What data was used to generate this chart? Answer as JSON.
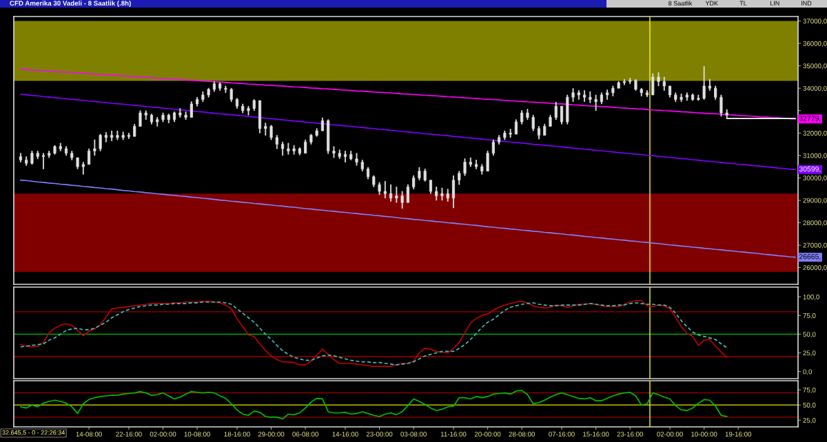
{
  "chart_data": [
    {
      "type": "candlestick",
      "title": "CFD Amerika 30 Vadeli - 8 Saatlik (.8h)",
      "color": "#e0e0e0",
      "annotations": [
        "8 Saatlik",
        "YDK",
        "TL",
        "LIN",
        "IND"
      ],
      "categories": [
        null,
        null,
        null,
        null,
        null,
        null,
        null,
        null,
        null,
        null,
        null,
        null,
        null,
        null,
        null,
        null,
        null,
        null,
        null,
        null,
        null,
        null,
        null,
        null,
        null,
        null,
        null,
        null,
        null,
        null,
        null,
        null,
        null,
        null,
        null,
        null,
        null,
        null,
        null,
        null,
        null,
        null,
        null,
        null,
        null,
        null,
        null,
        null,
        null,
        null,
        null,
        null,
        null,
        null,
        null,
        null,
        null,
        null,
        null,
        null,
        null,
        null,
        null,
        null,
        null,
        null,
        null,
        null,
        null,
        null,
        null,
        null,
        null,
        null,
        null,
        null,
        null,
        null,
        null,
        null,
        null,
        null,
        null,
        null,
        null,
        null,
        null,
        null,
        null,
        null,
        null,
        null,
        null,
        null,
        null,
        null,
        null,
        null,
        null,
        null,
        null,
        null,
        null,
        null,
        null,
        null,
        null,
        null,
        null,
        null,
        null,
        null,
        null,
        null,
        null,
        null,
        null,
        null,
        null,
        null,
        null,
        null,
        null,
        null,
        null,
        null,
        null,
        null,
        null,
        null,
        null,
        null,
        null,
        null,
        null,
        null,
        null
      ],
      "ohlc": [
        [
          30950,
          31100,
          30700,
          30800
        ],
        [
          30800,
          30950,
          30550,
          30650
        ],
        [
          30650,
          31200,
          30600,
          31100
        ],
        [
          31100,
          31200,
          30850,
          30950
        ],
        [
          30950,
          31100,
          30400,
          31000
        ],
        [
          31000,
          31200,
          30900,
          31100
        ],
        [
          31100,
          31450,
          31050,
          31400
        ],
        [
          31400,
          31550,
          31200,
          31300
        ],
        [
          31300,
          31400,
          31000,
          31100
        ],
        [
          31100,
          31200,
          30800,
          30900
        ],
        [
          30900,
          30900,
          30400,
          30500
        ],
        [
          30500,
          30700,
          30160,
          30600
        ],
        [
          30600,
          31300,
          30600,
          31200
        ],
        [
          31200,
          31700,
          31000,
          31300
        ],
        [
          31300,
          31950,
          31200,
          31900
        ],
        [
          31900,
          32030,
          31600,
          31800
        ],
        [
          31800,
          32100,
          31650,
          31900
        ],
        [
          31900,
          32100,
          31700,
          31800
        ],
        [
          31800,
          32050,
          31700,
          31900
        ],
        [
          31900,
          32000,
          31750,
          31850
        ],
        [
          31850,
          32400,
          31850,
          32300
        ],
        [
          32300,
          33000,
          32300,
          32900
        ],
        [
          32900,
          33000,
          32600,
          32800
        ],
        [
          32800,
          32850,
          32400,
          32500
        ],
        [
          32500,
          32700,
          32300,
          32600
        ],
        [
          32600,
          32900,
          32500,
          32800
        ],
        [
          32800,
          32850,
          32450,
          32600
        ],
        [
          32600,
          32950,
          32500,
          32900
        ],
        [
          32900,
          33100,
          32700,
          32800
        ],
        [
          32800,
          32950,
          32600,
          32700
        ],
        [
          32700,
          33400,
          32700,
          33300
        ],
        [
          33300,
          33600,
          33200,
          33500
        ],
        [
          33500,
          33850,
          33400,
          33700
        ],
        [
          33700,
          34000,
          33600,
          33950
        ],
        [
          33950,
          34300,
          33850,
          34200
        ],
        [
          34200,
          34250,
          33900,
          34000
        ],
        [
          34000,
          34100,
          33800,
          33950
        ],
        [
          33950,
          34000,
          33400,
          33500
        ],
        [
          33500,
          33550,
          33100,
          33200
        ],
        [
          33200,
          33300,
          32900,
          33000
        ],
        [
          33000,
          33200,
          32800,
          33100
        ],
        [
          33100,
          33500,
          33000,
          33450
        ],
        [
          33450,
          33450,
          32000,
          32200
        ],
        [
          32200,
          32450,
          31900,
          32300
        ],
        [
          32300,
          32350,
          31700,
          31800
        ],
        [
          31800,
          31900,
          31300,
          31500
        ],
        [
          31500,
          31600,
          31000,
          31300
        ],
        [
          31300,
          31550,
          31050,
          31200
        ],
        [
          31200,
          31450,
          31050,
          31300
        ],
        [
          31300,
          31350,
          31020,
          31100
        ],
        [
          31100,
          31700,
          31100,
          31600
        ],
        [
          31600,
          31950,
          31500,
          31900
        ],
        [
          31900,
          32200,
          31850,
          32100
        ],
        [
          32100,
          32680,
          32100,
          32550
        ],
        [
          32550,
          32600,
          31080,
          31200
        ],
        [
          31200,
          31400,
          30900,
          31100
        ],
        [
          31100,
          31250,
          30860,
          30950
        ],
        [
          30950,
          31200,
          30700,
          31050
        ],
        [
          31050,
          31200,
          30800,
          30850
        ],
        [
          30850,
          31100,
          30560,
          30700
        ],
        [
          30700,
          30800,
          30300,
          30400
        ],
        [
          30400,
          30470,
          29950,
          30050
        ],
        [
          30050,
          30100,
          29600,
          29700
        ],
        [
          29700,
          29800,
          29250,
          29400
        ],
        [
          29400,
          29850,
          29100,
          29300
        ],
        [
          29300,
          29700,
          28950,
          29100
        ],
        [
          29100,
          29600,
          28900,
          29200
        ],
        [
          29200,
          29400,
          28640,
          28900
        ],
        [
          28900,
          29700,
          28900,
          29600
        ],
        [
          29600,
          30100,
          29500,
          30000
        ],
        [
          30000,
          30470,
          29900,
          30300
        ],
        [
          30300,
          30400,
          29850,
          29900
        ],
        [
          29900,
          29900,
          29300,
          29400
        ],
        [
          29400,
          29600,
          29000,
          29200
        ],
        [
          29200,
          29550,
          29000,
          29300
        ],
        [
          29300,
          29500,
          28950,
          29100
        ],
        [
          29100,
          30100,
          28660,
          29900
        ],
        [
          29900,
          30300,
          29700,
          30200
        ],
        [
          30200,
          30860,
          30100,
          30700
        ],
        [
          30700,
          30900,
          30500,
          30600
        ],
        [
          30600,
          30800,
          30400,
          30500
        ],
        [
          30500,
          30600,
          30160,
          30300
        ],
        [
          30300,
          31200,
          30300,
          31100
        ],
        [
          31100,
          31700,
          31000,
          31600
        ],
        [
          31600,
          31900,
          31500,
          31800
        ],
        [
          31800,
          32100,
          31700,
          32000
        ],
        [
          32000,
          32180,
          31800,
          31950
        ],
        [
          31950,
          32600,
          31950,
          32500
        ],
        [
          32500,
          33010,
          32400,
          32900
        ],
        [
          32900,
          33070,
          32600,
          32700
        ],
        [
          32700,
          32800,
          32100,
          32200
        ],
        [
          32200,
          32300,
          31730,
          31900
        ],
        [
          31900,
          32400,
          31900,
          32300
        ],
        [
          32300,
          32800,
          32300,
          32700
        ],
        [
          32700,
          33380,
          32600,
          33200
        ],
        [
          33200,
          33200,
          32400,
          32500
        ],
        [
          32500,
          33700,
          32400,
          33600
        ],
        [
          33600,
          33990,
          33400,
          33800
        ],
        [
          33800,
          33900,
          33500,
          33700
        ],
        [
          33700,
          33900,
          33400,
          33600
        ],
        [
          33600,
          33850,
          33350,
          33500
        ],
        [
          33500,
          33700,
          33000,
          33400
        ],
        [
          33400,
          33800,
          33300,
          33700
        ],
        [
          33700,
          33930,
          33500,
          33800
        ],
        [
          33800,
          34100,
          33650,
          34000
        ],
        [
          34000,
          34300,
          34000,
          34250
        ],
        [
          34250,
          34400,
          34150,
          34300
        ],
        [
          34300,
          34450,
          34200,
          34350
        ],
        [
          34350,
          34400,
          33900,
          33950
        ],
        [
          33950,
          34000,
          33650,
          33800
        ],
        [
          33800,
          33900,
          33620,
          33700
        ],
        [
          33700,
          34650,
          33700,
          34500
        ],
        [
          34500,
          34700,
          34100,
          34300
        ],
        [
          34300,
          34500,
          33900,
          34100
        ],
        [
          34100,
          34100,
          33600,
          33700
        ],
        [
          33700,
          33800,
          33400,
          33500
        ],
        [
          33500,
          33750,
          33400,
          33600
        ],
        [
          33600,
          33800,
          33450,
          33700
        ],
        [
          33700,
          33750,
          33450,
          33500
        ],
        [
          33500,
          33700,
          33450,
          33550
        ],
        [
          33550,
          34975,
          33500,
          34100
        ],
        [
          34100,
          34400,
          33900,
          34000
        ],
        [
          34000,
          34100,
          33500,
          33600
        ],
        [
          33600,
          33700,
          32750,
          32900
        ],
        [
          32900,
          33050,
          32650,
          32800
        ],
        null,
        null,
        null,
        null,
        null,
        null,
        null,
        null,
        null,
        null,
        null,
        null
      ],
      "series": [
        {
          "type": "line",
          "name": "32779,",
          "color": "#ff00ff",
          "values": [
            34850,
            34830,
            34810,
            34800,
            34780,
            34760,
            34750,
            34730,
            34720,
            34700,
            34680,
            34670,
            34650,
            34630,
            34620,
            34600,
            34590,
            34570,
            34550,
            34540,
            34520,
            34500,
            34490,
            34470,
            34450,
            34440,
            34420,
            34410,
            34390,
            34370,
            34360,
            34340,
            34320,
            34310,
            34290,
            34280,
            34260,
            34240,
            34230,
            34210,
            34190,
            34180,
            34160,
            34140,
            34130,
            34110,
            34100,
            34080,
            34060,
            34050,
            34030,
            34010,
            34000,
            33980,
            33970,
            33950,
            33930,
            33920,
            33900,
            33880,
            33870,
            33850,
            33830,
            33820,
            33800,
            33790,
            33770,
            33750,
            33740,
            33720,
            33700,
            33690,
            33670,
            33660,
            33640,
            33620,
            33610,
            33590,
            33570,
            33560,
            33540,
            33520,
            33510,
            33490,
            33480,
            33460,
            33440,
            33430,
            33410,
            33390,
            33380,
            33360,
            33350,
            33330,
            33310,
            33300,
            33280,
            33260,
            33250,
            33230,
            33210,
            33200,
            33180,
            33170,
            33150,
            33130,
            33120,
            33100,
            33080,
            33070,
            33050,
            33030,
            33020,
            33000,
            32990,
            32970,
            32950,
            32940,
            32920,
            32900,
            32890,
            32870,
            32860,
            32840,
            32820,
            32810,
            32790,
            32770,
            32760,
            32740,
            32720,
            32710,
            32690,
            32680,
            32660,
            32640,
            32630
          ]
        },
        {
          "type": "line",
          "name": "30599,",
          "color": "#8000ff",
          "values": [
            33730,
            33710,
            33680,
            33660,
            33630,
            33610,
            33580,
            33560,
            33530,
            33510,
            33480,
            33460,
            33430,
            33410,
            33380,
            33360,
            33330,
            33310,
            33290,
            33260,
            33240,
            33210,
            33190,
            33160,
            33140,
            33110,
            33090,
            33060,
            33040,
            33010,
            32990,
            32960,
            32940,
            32910,
            32890,
            32860,
            32840,
            32820,
            32790,
            32770,
            32740,
            32720,
            32690,
            32670,
            32640,
            32620,
            32590,
            32570,
            32540,
            32520,
            32490,
            32470,
            32440,
            32420,
            32390,
            32370,
            32350,
            32320,
            32300,
            32270,
            32250,
            32220,
            32200,
            32170,
            32150,
            32120,
            32100,
            32070,
            32050,
            32020,
            32000,
            31970,
            31950,
            31930,
            31900,
            31880,
            31850,
            31830,
            31800,
            31780,
            31750,
            31730,
            31700,
            31680,
            31650,
            31630,
            31600,
            31580,
            31550,
            31530,
            31500,
            31480,
            31460,
            31430,
            31410,
            31380,
            31360,
            31330,
            31310,
            31280,
            31260,
            31230,
            31210,
            31180,
            31160,
            31130,
            31110,
            31080,
            31060,
            31040,
            31010,
            30990,
            30960,
            30940,
            30910,
            30890,
            30860,
            30840,
            30810,
            30790,
            30760,
            30740,
            30710,
            30690,
            30660,
            30640,
            30610,
            30590,
            30570,
            30540,
            30520,
            30490,
            30470,
            30440,
            30420,
            30390,
            30370
          ]
        },
        {
          "type": "line",
          "name": "26665,",
          "color": "#8080ff",
          "values": [
            29900,
            29880,
            29850,
            29820,
            29800,
            29770,
            29750,
            29720,
            29700,
            29670,
            29650,
            29620,
            29600,
            29570,
            29550,
            29520,
            29500,
            29470,
            29440,
            29420,
            29390,
            29370,
            29340,
            29320,
            29290,
            29270,
            29240,
            29220,
            29190,
            29170,
            29140,
            29120,
            29090,
            29070,
            29040,
            29010,
            28990,
            28960,
            28940,
            28910,
            28890,
            28860,
            28840,
            28810,
            28790,
            28760,
            28740,
            28710,
            28690,
            28660,
            28630,
            28610,
            28580,
            28560,
            28530,
            28510,
            28480,
            28460,
            28430,
            28410,
            28380,
            28360,
            28330,
            28310,
            28280,
            28260,
            28230,
            28200,
            28180,
            28150,
            28130,
            28100,
            28080,
            28050,
            28030,
            28000,
            27980,
            27950,
            27930,
            27900,
            27880,
            27850,
            27820,
            27800,
            27770,
            27750,
            27720,
            27700,
            27670,
            27650,
            27620,
            27600,
            27570,
            27550,
            27520,
            27500,
            27470,
            27450,
            27420,
            27390,
            27370,
            27340,
            27320,
            27290,
            27270,
            27240,
            27220,
            27190,
            27170,
            27140,
            27120,
            27090,
            27070,
            27040,
            27010,
            26990,
            26960,
            26940,
            26910,
            26890,
            26860,
            26840,
            26810,
            26790,
            26760,
            26740,
            26710,
            26690,
            26660,
            26640,
            26610,
            26580,
            26560,
            26530,
            26510,
            26480,
            26460
          ]
        },
        {
          "type": "line",
          "color": "#ffffff",
          "values": [
            null,
            null,
            null,
            null,
            null,
            null,
            null,
            null,
            null,
            null,
            null,
            null,
            null,
            null,
            null,
            null,
            null,
            null,
            null,
            null,
            null,
            null,
            null,
            null,
            null,
            null,
            null,
            null,
            null,
            null,
            null,
            null,
            null,
            null,
            null,
            null,
            null,
            null,
            null,
            null,
            null,
            null,
            null,
            null,
            null,
            null,
            null,
            null,
            null,
            null,
            null,
            null,
            null,
            null,
            null,
            null,
            null,
            null,
            null,
            null,
            null,
            null,
            null,
            null,
            null,
            null,
            null,
            null,
            null,
            null,
            null,
            null,
            null,
            null,
            null,
            null,
            null,
            null,
            null,
            null,
            null,
            null,
            null,
            null,
            null,
            null,
            null,
            null,
            null,
            null,
            null,
            null,
            null,
            null,
            null,
            null,
            null,
            null,
            null,
            null,
            null,
            null,
            null,
            null,
            null,
            null,
            null,
            null,
            null,
            null,
            null,
            null,
            null,
            null,
            null,
            null,
            null,
            null,
            null,
            null,
            null,
            null,
            null,
            null,
            32650,
            32650,
            32650,
            32650,
            32650,
            32650,
            32650,
            32650,
            32650,
            32650,
            32650,
            32650,
            32650
          ]
        }
      ],
      "bands": [
        {
          "axis": "y",
          "from": 34330,
          "to": 37000,
          "color": "#808000"
        },
        {
          "axis": "y",
          "from": 25800,
          "to": 29300,
          "color": "#800000"
        }
      ],
      "ylim": [
        25250,
        37200
      ],
      "yticks": [
        {
          "value": 26000,
          "label": "26000,0"
        },
        {
          "value": 27000,
          "label": "27000,0"
        },
        {
          "value": 28000,
          "label": "28000,0"
        },
        {
          "value": 29000,
          "label": "29000,0"
        },
        {
          "value": 30000,
          "label": "30000,0"
        },
        {
          "value": 31000,
          "label": "31000,0"
        },
        {
          "value": 32000,
          "label": "32000,0"
        },
        {
          "value": 33000,
          "label": null
        },
        {
          "value": 34000,
          "label": "34000,0"
        },
        {
          "value": 35000,
          "label": "35000,0"
        },
        {
          "value": 36000,
          "label": "36000,0"
        },
        {
          "value": 37000,
          "label": "37000,0"
        }
      ],
      "tick_labels": "y"
    },
    {
      "type": "line",
      "categories": [
        null,
        null,
        null,
        null,
        null,
        null,
        null,
        null,
        null,
        null,
        null,
        null,
        null,
        null,
        null,
        null,
        null,
        null,
        null,
        null,
        null,
        null,
        null,
        null,
        null,
        null,
        null,
        null,
        null,
        null,
        null,
        null,
        null,
        null,
        null,
        null,
        null,
        null,
        null,
        null,
        null,
        null,
        null,
        null,
        null,
        null,
        null,
        null,
        null,
        null,
        null,
        null,
        null,
        null,
        null,
        null,
        null,
        null,
        null,
        null,
        null,
        null,
        null,
        null,
        null,
        null,
        null,
        null,
        null,
        null,
        null,
        null,
        null,
        null,
        null,
        null,
        null,
        null,
        null,
        null,
        null,
        null,
        null,
        null,
        null,
        null,
        null,
        null,
        null,
        null,
        null,
        null,
        null,
        null,
        null,
        null,
        null,
        null,
        null,
        null,
        null,
        null,
        null,
        null,
        null,
        null,
        null,
        null,
        null,
        null,
        null,
        null,
        null,
        null,
        null,
        null,
        null,
        null,
        null,
        null,
        null,
        null,
        null,
        null,
        null,
        null,
        null,
        null,
        null,
        null,
        null,
        null,
        null,
        null,
        null,
        null,
        null
      ],
      "series": [
        {
          "color": "#c00000",
          "values": [
            36,
            34,
            33,
            34,
            39,
            52,
            58,
            62,
            64,
            62,
            55,
            48,
            54,
            57,
            63,
            73,
            84,
            85,
            86,
            87,
            88,
            89,
            90,
            91,
            91,
            91,
            91,
            92,
            92,
            93,
            93,
            93,
            94,
            94,
            93,
            92,
            89,
            84,
            71,
            60,
            49,
            47,
            37,
            28,
            21,
            16,
            13,
            13,
            12,
            9,
            9,
            14,
            22,
            30,
            23,
            16,
            11,
            11,
            11,
            10,
            9,
            8,
            7,
            7,
            7,
            7,
            9,
            11,
            11,
            14,
            25,
            31,
            30,
            27,
            26,
            25,
            31,
            39,
            52,
            65,
            71,
            75,
            77,
            82,
            86,
            89,
            91,
            93,
            94,
            92,
            88,
            86,
            85,
            86,
            89,
            88,
            86,
            88,
            90,
            90,
            91,
            90,
            88,
            87,
            87,
            87,
            90,
            93,
            95,
            95,
            88,
            87,
            89,
            88,
            84,
            73,
            60,
            51,
            47,
            35,
            42,
            43,
            34,
            26,
            19,
            null,
            null,
            null,
            null,
            null,
            null,
            null,
            null,
            null,
            null,
            null,
            null
          ]
        },
        {
          "color": "#40c0c0",
          "line_style": "dashed",
          "values": [
            33,
            34,
            35,
            36,
            37,
            42,
            45,
            50,
            55,
            57,
            58,
            56,
            56,
            58,
            62,
            66,
            72,
            76,
            80,
            83,
            85,
            87,
            88,
            89,
            89,
            90,
            90,
            91,
            91,
            91,
            92,
            92,
            93,
            93,
            93,
            93,
            92,
            90,
            84,
            78,
            72,
            66,
            58,
            50,
            43,
            35,
            28,
            23,
            19,
            17,
            15,
            15,
            18,
            21,
            22,
            21,
            19,
            17,
            15,
            14,
            13,
            13,
            12,
            12,
            11,
            10,
            9,
            10,
            11,
            13,
            17,
            21,
            23,
            25,
            27,
            27,
            27,
            31,
            36,
            43,
            51,
            59,
            66,
            70,
            76,
            82,
            86,
            88,
            90,
            91,
            92,
            90,
            89,
            88,
            88,
            89,
            89,
            89,
            89,
            90,
            91,
            90,
            89,
            88,
            88,
            89,
            89,
            91,
            92,
            91,
            90,
            90,
            89,
            89,
            86,
            78,
            68,
            60,
            53,
            49,
            47,
            45,
            43,
            37,
            32,
            null,
            null,
            null,
            null,
            null,
            null,
            null,
            null,
            null,
            null,
            null,
            null
          ]
        }
      ],
      "ref_lines": [
        {
          "axis": "y",
          "value": 80,
          "color": "#a00000"
        },
        {
          "axis": "y",
          "value": 50,
          "color": "#00c000"
        },
        {
          "axis": "y",
          "value": 20,
          "color": "#a00000"
        }
      ],
      "ylim": [
        -9.5,
        113
      ],
      "yticks": [
        {
          "value": 0,
          "label": "0,0"
        },
        {
          "value": 25,
          "label": "25,0"
        },
        {
          "value": 50,
          "label": "50,0"
        },
        {
          "value": 75,
          "label": "75,0"
        },
        {
          "value": 100,
          "label": "100,0"
        }
      ],
      "tick_labels": "y"
    },
    {
      "type": "line",
      "annotations": [
        "32.645,5 - 0 - 22:26:34"
      ],
      "categories": [
        null,
        null,
        null,
        null,
        null,
        null,
        null,
        null,
        null,
        null,
        null,
        null,
        "14-08:00",
        null,
        null,
        null,
        null,
        null,
        null,
        "22-16:00",
        null,
        null,
        null,
        null,
        null,
        "02-00:00",
        null,
        null,
        null,
        null,
        null,
        "10-08:00",
        null,
        null,
        null,
        null,
        null,
        null,
        "18-16:00",
        null,
        null,
        null,
        null,
        null,
        "29-00:00",
        null,
        null,
        null,
        null,
        null,
        "06-08:00",
        null,
        null,
        null,
        null,
        null,
        null,
        "14-16:00",
        null,
        null,
        null,
        null,
        null,
        "23-00:00",
        null,
        null,
        null,
        null,
        null,
        "03-08:00",
        null,
        null,
        null,
        null,
        null,
        null,
        "11-16:00",
        null,
        null,
        null,
        null,
        null,
        "20-00:00",
        null,
        null,
        null,
        null,
        null,
        "28-08:00",
        null,
        null,
        null,
        null,
        null,
        null,
        "07-16:00",
        null,
        null,
        null,
        null,
        null,
        "15-16:00",
        null,
        null,
        null,
        null,
        null,
        "23-16:00",
        null,
        null,
        null,
        null,
        null,
        null,
        "02-00:00",
        null,
        null,
        null,
        null,
        null,
        "10-00:00",
        null,
        null,
        null,
        null,
        null,
        "19-16:00",
        null,
        null,
        null,
        null,
        null,
        null,
        null,
        null,
        null,
        null
      ],
      "series": [
        {
          "color": "#00c000",
          "values": [
            47,
            45,
            50,
            47,
            53,
            56,
            58,
            56,
            53,
            47,
            36,
            52,
            59,
            62,
            64,
            65,
            66,
            66,
            68,
            69,
            70,
            72,
            70,
            66,
            67,
            70,
            65,
            60,
            63,
            68,
            72,
            71,
            70,
            71,
            70,
            65,
            61,
            52,
            42,
            35,
            33,
            40,
            38,
            31,
            30,
            30,
            27,
            35,
            34,
            37,
            45,
            55,
            61,
            60,
            39,
            37,
            37,
            38,
            35,
            36,
            39,
            36,
            33,
            31,
            35,
            37,
            34,
            39,
            49,
            60,
            56,
            51,
            45,
            41,
            43,
            47,
            48,
            62,
            62,
            60,
            64,
            62,
            64,
            68,
            69,
            70,
            68,
            73,
            74,
            67,
            52,
            54,
            58,
            63,
            67,
            70,
            67,
            64,
            61,
            60,
            62,
            57,
            57,
            61,
            65,
            68,
            70,
            71,
            65,
            50,
            52,
            70,
            67,
            63,
            60,
            49,
            42,
            41,
            45,
            53,
            59,
            58,
            48,
            33,
            31,
            null,
            null,
            null,
            null,
            null,
            null,
            null,
            null,
            null,
            null,
            null,
            null
          ]
        }
      ],
      "ref_lines": [
        {
          "axis": "y",
          "value": 70,
          "color": "#a00000"
        },
        {
          "axis": "y",
          "value": 50,
          "color": "#c0c000"
        },
        {
          "axis": "y",
          "value": 30,
          "color": "#a00000"
        }
      ],
      "ylim": [
        14,
        90
      ],
      "yticks": [
        {
          "value": 25,
          "label": "25,0"
        },
        {
          "value": 50,
          "label": "50,0"
        },
        {
          "value": 75,
          "label": "75,0"
        }
      ]
    }
  ]
}
